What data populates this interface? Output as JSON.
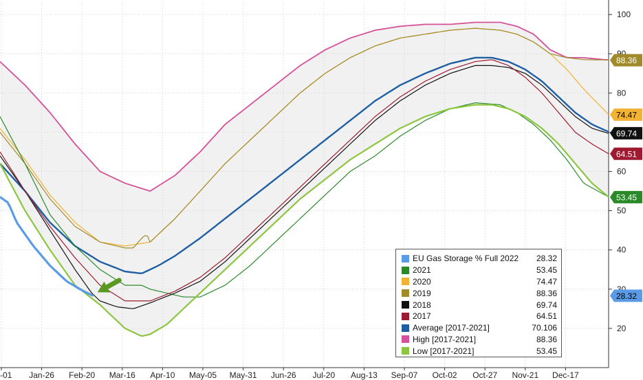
{
  "chart_data": {
    "type": "line",
    "x_tick_labels": [
      "-01",
      "Jan-26",
      "Feb-20",
      "Mar-16",
      "Apr-10",
      "May-05",
      "May-31",
      "Jun-26",
      "Jul-20",
      "Aug-13",
      "Sep-07",
      "Oct-02",
      "Oct-27",
      "Nov-21",
      "Dec-17"
    ],
    "y_ticks": [
      20,
      30,
      40,
      50,
      60,
      70,
      80,
      90,
      100
    ],
    "ylim": [
      10,
      103
    ],
    "xlim": [
      0,
      365
    ],
    "grid": true,
    "legend_placement": "bottom-right",
    "band": {
      "upper_series": "High  [2017-2021]",
      "lower_series": "Low  [2017-2021]",
      "color": "#f1f1f1"
    },
    "series": [
      {
        "name": "High  [2017-2021]",
        "legend_value": "88.36",
        "color": "#d6509a",
        "width": 1.8,
        "x": [
          0,
          15,
          30,
          45,
          60,
          75,
          90,
          105,
          120,
          135,
          150,
          165,
          180,
          195,
          210,
          225,
          240,
          255,
          270,
          285,
          300,
          310,
          320,
          330,
          340,
          350,
          365
        ],
        "y": [
          88,
          82,
          75,
          67,
          60,
          57,
          55,
          59,
          65,
          72,
          77,
          82,
          87,
          91,
          94,
          96,
          97,
          97.5,
          97.5,
          98,
          98,
          97,
          95,
          91,
          89,
          89,
          88.4
        ]
      },
      {
        "name": "2020",
        "legend_value": "74.47",
        "color": "#f2b233",
        "width": 1.2,
        "x": [
          0,
          15,
          30,
          45,
          60,
          75,
          90,
          105,
          120,
          135,
          150,
          165,
          180,
          195,
          210,
          225,
          240,
          255,
          270,
          285,
          300,
          310,
          320,
          330,
          340,
          350,
          365
        ],
        "y": [
          71,
          63,
          54,
          47,
          42,
          41,
          42,
          48,
          55,
          62,
          68,
          74,
          80,
          85,
          89,
          92,
          94,
          95,
          96,
          96.5,
          96,
          95,
          93,
          90,
          86,
          81,
          74.5
        ]
      },
      {
        "name": "2019",
        "legend_value": "88.36",
        "color": "#a08a2a",
        "width": 1.2,
        "x": [
          0,
          15,
          30,
          45,
          60,
          75,
          80,
          85,
          88,
          90,
          105,
          120,
          135,
          150,
          165,
          180,
          195,
          210,
          225,
          240,
          255,
          270,
          285,
          300,
          310,
          320,
          330,
          340,
          350,
          365
        ],
        "y": [
          70,
          62,
          53,
          46,
          42,
          40.5,
          40.5,
          43,
          44,
          42,
          48,
          55,
          62,
          68,
          74,
          80,
          85,
          89,
          92,
          94,
          95,
          96,
          96.5,
          96,
          95,
          93,
          90,
          89,
          88.5,
          88.4
        ]
      },
      {
        "name": "Average  [2017-2021]",
        "legend_value": "70.106",
        "color": "#1e5fa4",
        "width": 2.4,
        "x": [
          0,
          15,
          30,
          45,
          60,
          75,
          85,
          95,
          105,
          120,
          135,
          150,
          165,
          180,
          195,
          210,
          225,
          240,
          255,
          270,
          285,
          295,
          305,
          315,
          325,
          335,
          345,
          355,
          365
        ],
        "y": [
          62,
          55,
          47,
          41,
          37,
          34.5,
          34,
          36,
          38.5,
          43,
          48,
          53,
          58,
          63,
          68,
          73,
          78,
          82,
          85,
          87.5,
          89,
          89,
          88,
          86,
          83,
          79,
          75,
          72,
          70.1
        ]
      },
      {
        "name": "2021",
        "legend_value": "53.45",
        "color": "#2a8a2a",
        "width": 1.2,
        "x": [
          0,
          15,
          30,
          45,
          60,
          75,
          85,
          90,
          100,
          110,
          120,
          135,
          150,
          165,
          180,
          195,
          210,
          225,
          240,
          255,
          270,
          285,
          300,
          310,
          320,
          330,
          340,
          350,
          365
        ],
        "y": [
          74,
          62,
          49,
          41,
          35,
          31,
          31,
          30,
          29,
          28,
          28,
          31,
          36,
          42,
          48,
          54,
          60,
          64,
          69,
          73,
          76,
          77.5,
          77,
          75,
          72,
          68,
          63,
          57,
          53.5
        ]
      },
      {
        "name": "2018",
        "legend_value": "69.74",
        "color": "#111111",
        "width": 1.2,
        "x": [
          0,
          15,
          30,
          45,
          55,
          60,
          70,
          80,
          90,
          105,
          120,
          135,
          150,
          165,
          180,
          195,
          210,
          225,
          240,
          255,
          270,
          285,
          295,
          305,
          315,
          325,
          335,
          345,
          355,
          365
        ],
        "y": [
          64,
          55,
          45,
          35,
          29,
          27,
          25.5,
          25,
          26.5,
          29,
          32,
          37,
          43,
          49,
          55,
          61,
          67,
          73,
          78,
          82,
          85,
          87,
          87,
          86.5,
          85,
          82,
          78,
          74,
          71,
          69.7
        ]
      },
      {
        "name": "2017",
        "legend_value": "64.51",
        "color": "#9e1a30",
        "width": 1.2,
        "x": [
          0,
          15,
          30,
          45,
          60,
          75,
          90,
          105,
          120,
          135,
          150,
          165,
          180,
          195,
          210,
          225,
          240,
          255,
          270,
          285,
          295,
          305,
          315,
          325,
          335,
          345,
          355,
          365
        ],
        "y": [
          65,
          55,
          46,
          38,
          31,
          27,
          27,
          29.5,
          33,
          38,
          44,
          50,
          56,
          62,
          68,
          74,
          79,
          83,
          86,
          88,
          88.5,
          87,
          84,
          80,
          75,
          70,
          67,
          64.5
        ]
      },
      {
        "name": "Low  [2017-2021]",
        "legend_value": "53.45",
        "color": "#8cc63f",
        "width": 2.2,
        "x": [
          0,
          15,
          30,
          45,
          60,
          70,
          75,
          85,
          90,
          100,
          110,
          120,
          135,
          150,
          165,
          180,
          195,
          210,
          225,
          240,
          255,
          270,
          285,
          295,
          305,
          315,
          325,
          335,
          345,
          355,
          365
        ],
        "y": [
          62,
          50,
          40,
          31,
          26,
          22,
          20,
          18,
          18.5,
          21,
          25,
          29,
          35,
          41,
          47,
          53,
          58,
          63,
          67,
          71,
          74,
          76,
          77,
          77,
          76,
          74,
          71,
          67,
          62,
          57,
          53.5
        ]
      },
      {
        "name": "EU Gas Storage % Full 2022",
        "legend_value": "28.32",
        "color": "#5b9be6",
        "width": 3.2,
        "x": [
          0,
          5,
          10,
          20,
          30,
          40,
          50,
          56
        ],
        "y": [
          53.5,
          52,
          47,
          41,
          36,
          32,
          29.5,
          28.3
        ]
      }
    ],
    "badges": [
      {
        "text": "88.36",
        "value": 88.36,
        "bg": "#a08a2a",
        "fg": "#ffffff"
      },
      {
        "text": "74.47",
        "value": 74.47,
        "bg": "#f2b233",
        "fg": "#000000"
      },
      {
        "text": "69.74",
        "value": 69.74,
        "bg": "#111111",
        "fg": "#ffffff"
      },
      {
        "text": "64.51",
        "value": 64.51,
        "bg": "#9e1a30",
        "fg": "#ffffff"
      },
      {
        "text": "53.45",
        "value": 53.45,
        "bg": "#2a8a2a",
        "fg": "#ffffff"
      },
      {
        "text": "28.32",
        "value": 28.32,
        "bg": "#5b9be6",
        "fg": "#000000"
      }
    ],
    "annotation": {
      "type": "arrow",
      "color": "#5a9a23",
      "points_to": {
        "x": 56,
        "y": 28.5
      }
    }
  },
  "legend": {
    "rows": [
      {
        "label": "EU Gas Storage % Full 2022",
        "value": "28.32",
        "color": "#5b9be6"
      },
      {
        "label": "2021",
        "value": "53.45",
        "color": "#2a8a2a"
      },
      {
        "label": "2020",
        "value": "74.47",
        "color": "#f2b233"
      },
      {
        "label": "2019",
        "value": "88.36",
        "color": "#a08a2a"
      },
      {
        "label": "2018",
        "value": "69.74",
        "color": "#111111"
      },
      {
        "label": "2017",
        "value": "64.51",
        "color": "#9e1a30"
      },
      {
        "label": "Average  [2017-2021]",
        "value": "70.106",
        "color": "#1e5fa4"
      },
      {
        "label": "High  [2017-2021]",
        "value": "88.36",
        "color": "#d6509a"
      },
      {
        "label": "Low  [2017-2021]",
        "value": "53.45",
        "color": "#8cc63f"
      }
    ]
  }
}
